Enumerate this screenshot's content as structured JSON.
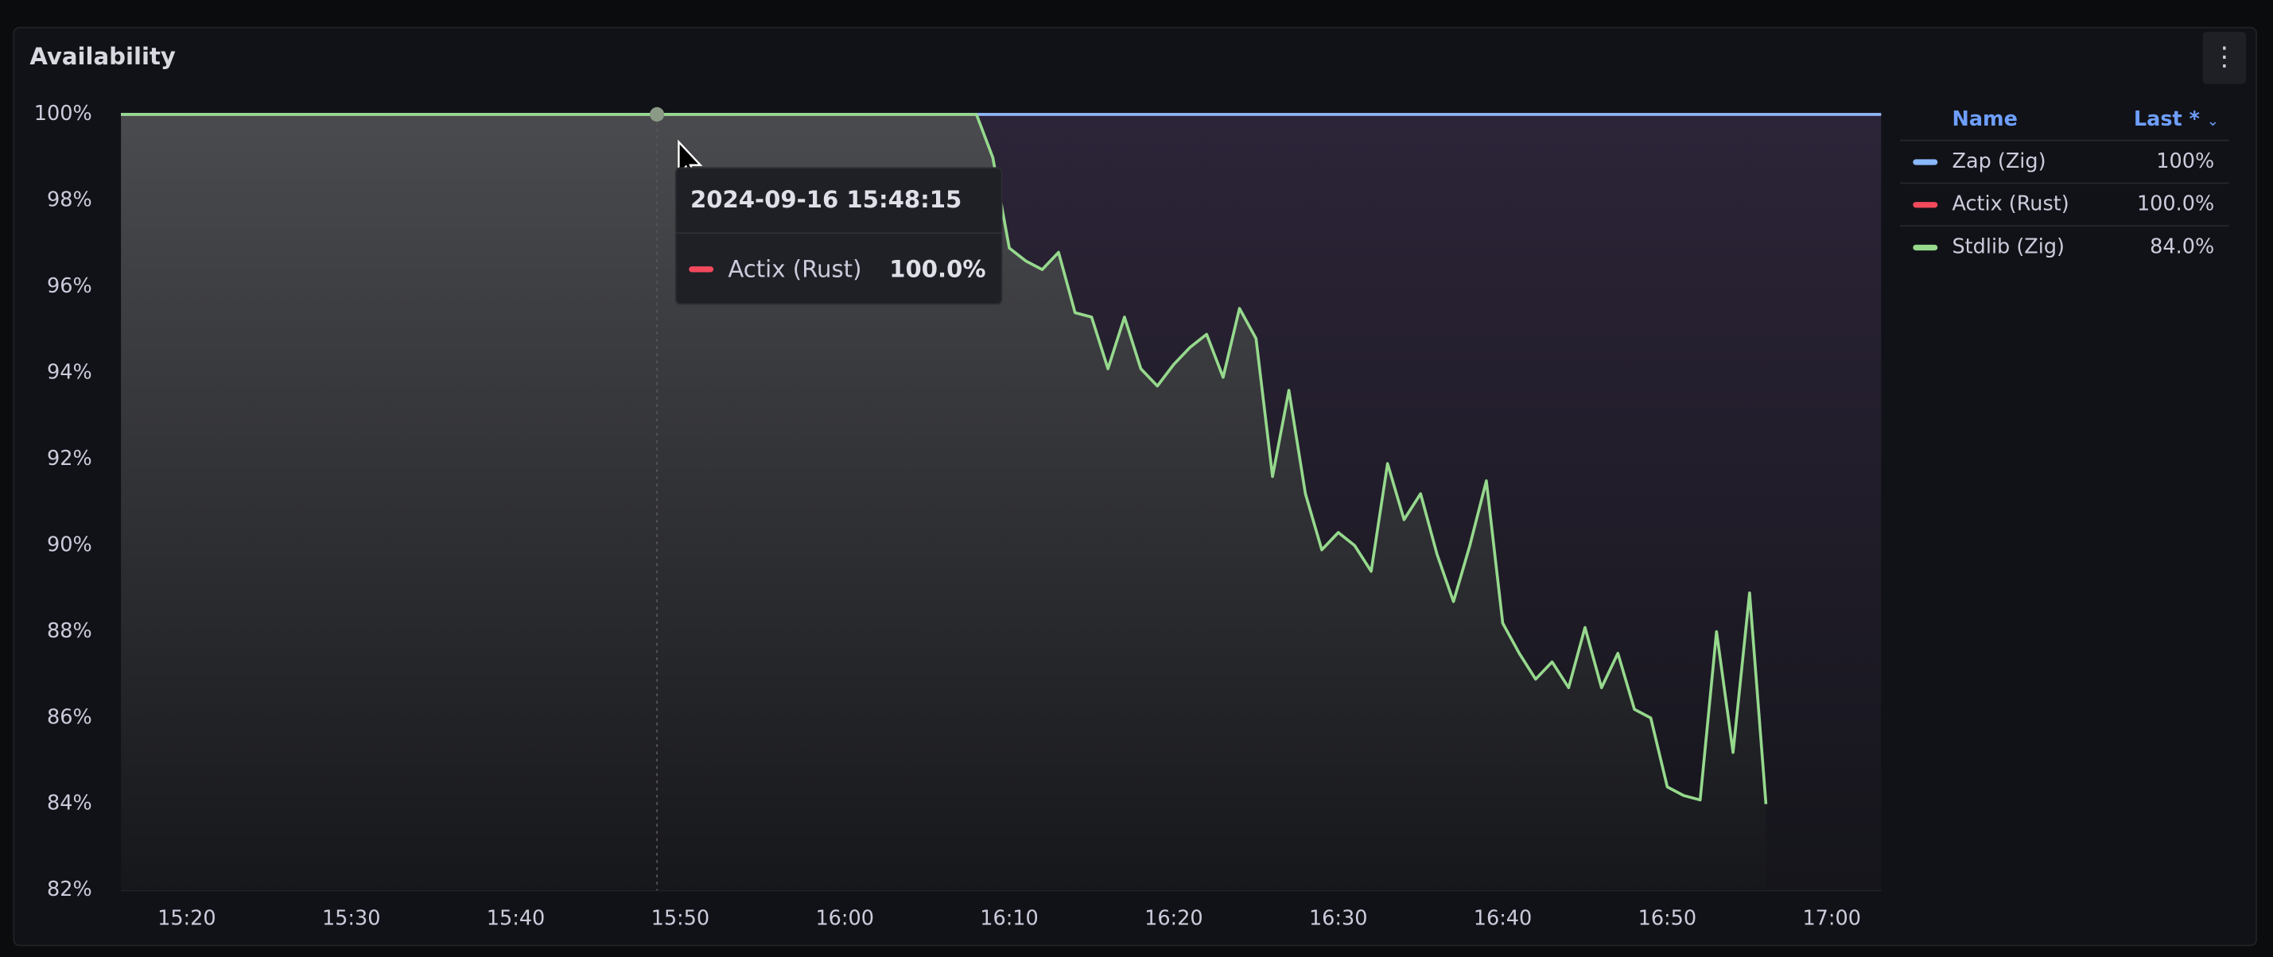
{
  "panel": {
    "title": "Availability"
  },
  "chart_data": {
    "type": "line",
    "x": [
      "15:16",
      "16:08",
      "16:09",
      "16:10",
      "16:11",
      "16:12",
      "16:13",
      "16:14",
      "16:15",
      "16:16",
      "16:17",
      "16:18",
      "16:19",
      "16:20",
      "16:21",
      "16:22",
      "16:23",
      "16:24",
      "16:25",
      "16:26",
      "16:27",
      "16:28",
      "16:29",
      "16:30",
      "16:31",
      "16:32",
      "16:33",
      "16:34",
      "16:35",
      "16:36",
      "16:37",
      "16:38",
      "16:39",
      "16:40",
      "16:41",
      "16:42",
      "16:43",
      "16:44",
      "16:45",
      "16:46",
      "16:47",
      "16:48",
      "16:49",
      "16:50",
      "16:51",
      "16:52",
      "16:53",
      "16:54",
      "16:55",
      "16:56",
      "17:03"
    ],
    "series": [
      {
        "name": "Zap (Zig)",
        "color": "#8ab8ff",
        "values": [
          100,
          100,
          100,
          100,
          100,
          100,
          100,
          100,
          100,
          100,
          100,
          100,
          100,
          100,
          100,
          100,
          100,
          100,
          100,
          100,
          100,
          100,
          100,
          100,
          100,
          100,
          100,
          100,
          100,
          100,
          100,
          100,
          100,
          100,
          100,
          100,
          100,
          100,
          100,
          100,
          100,
          100,
          100,
          100,
          100,
          100,
          100,
          100,
          100,
          100,
          100
        ]
      },
      {
        "name": "Actix (Rust)",
        "color": "#f2495c",
        "values": [
          100,
          100,
          100,
          100,
          100,
          100,
          100,
          100,
          100,
          100,
          100,
          100,
          100,
          100,
          100,
          100,
          100,
          100,
          100,
          100,
          100,
          100,
          100,
          100,
          100,
          100,
          100,
          100,
          100,
          100,
          100,
          100,
          100,
          100,
          100,
          100,
          100,
          100,
          100,
          100,
          100,
          100,
          100,
          100,
          100,
          100,
          100,
          100,
          100,
          100,
          100
        ]
      },
      {
        "name": "Stdlib (Zig)",
        "color": "#96d98d",
        "values": [
          100,
          100,
          99,
          96.9,
          96.6,
          96.4,
          96.8,
          95.4,
          95.3,
          94.1,
          95.3,
          94.1,
          93.7,
          94.2,
          94.6,
          94.9,
          93.9,
          95.5,
          94.8,
          91.6,
          93.6,
          91.2,
          89.9,
          90.3,
          90.0,
          89.4,
          91.9,
          90.6,
          91.2,
          89.8,
          88.7,
          90.0,
          91.5,
          88.2,
          87.5,
          86.9,
          87.3,
          86.7,
          88.1,
          86.7,
          87.5,
          86.2,
          86.0,
          84.4,
          84.2,
          84.1,
          88.0,
          85.2,
          88.9,
          84.0,
          null
        ]
      }
    ],
    "xlim": [
      "15:16",
      "17:03"
    ],
    "xticks": [
      "15:20",
      "15:30",
      "15:40",
      "15:50",
      "16:00",
      "16:10",
      "16:20",
      "16:30",
      "16:40",
      "16:50",
      "17:00"
    ],
    "ylim": [
      82,
      100
    ],
    "yticks": [
      {
        "value": 82,
        "label": "82%"
      },
      {
        "value": 84,
        "label": "84%"
      },
      {
        "value": 86,
        "label": "86%"
      },
      {
        "value": 88,
        "label": "88%"
      },
      {
        "value": 90,
        "label": "90%"
      },
      {
        "value": 92,
        "label": "92%"
      },
      {
        "value": 94,
        "label": "94%"
      },
      {
        "value": 96,
        "label": "96%"
      },
      {
        "value": 98,
        "label": "98%"
      },
      {
        "value": 100,
        "label": "100%"
      }
    ],
    "grid": true
  },
  "legend": {
    "name_header": "Name",
    "last_header": "Last *",
    "last": [
      "100%",
      "100.0%",
      "84.0%"
    ]
  },
  "tooltip": {
    "time": "2024-09-16 15:48:15",
    "value": "100.0%"
  }
}
